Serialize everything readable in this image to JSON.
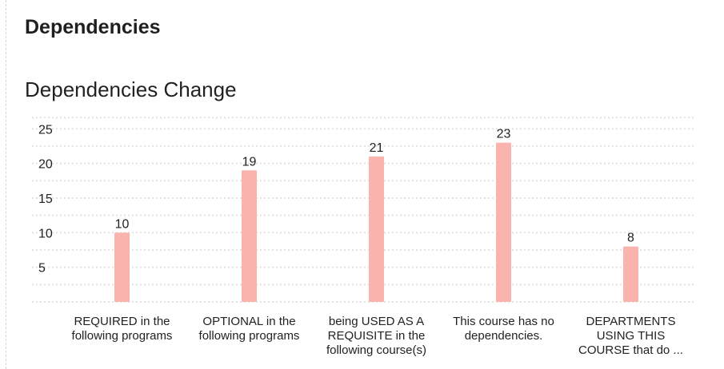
{
  "section": {
    "title": "Dependencies"
  },
  "chart_data": {
    "type": "bar",
    "title": "Dependencies Change",
    "xlabel": "",
    "ylabel": "",
    "categories": [
      [
        "REQUIRED in the",
        "following programs"
      ],
      [
        "OPTIONAL in the",
        "following programs"
      ],
      [
        "being USED AS A",
        "REQUISITE in the",
        "following course(s)"
      ],
      [
        "This course has no",
        "dependencies."
      ],
      [
        "DEPARTMENTS",
        "USING THIS",
        "COURSE that do ..."
      ]
    ],
    "values": [
      10,
      19,
      21,
      23,
      8
    ],
    "ylim": [
      0,
      25
    ],
    "yticks": [
      5,
      10,
      15,
      20,
      25
    ],
    "grid": true,
    "bar_color": "#fbb3ad",
    "grid_color": "#e2e2e2",
    "data_labels": true
  }
}
